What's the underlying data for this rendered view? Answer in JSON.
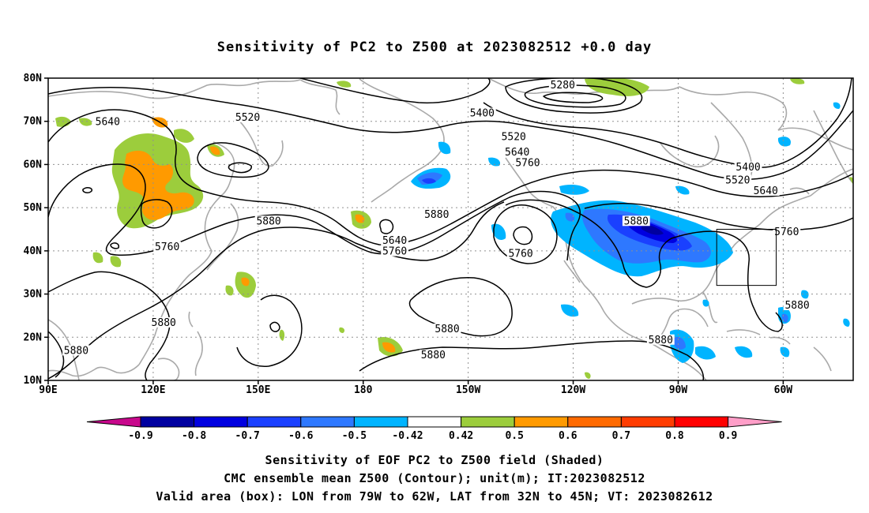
{
  "title": "Sensitivity of PC2 to Z500 at 2023082512 +0.0 day",
  "axes": {
    "lat_labels": [
      "80N",
      "70N",
      "60N",
      "50N",
      "40N",
      "30N",
      "20N",
      "10N"
    ],
    "lat_values": [
      80,
      70,
      60,
      50,
      40,
      30,
      20,
      10
    ],
    "lon_labels": [
      "90E",
      "120E",
      "150E",
      "180",
      "150W",
      "120W",
      "90W",
      "60W"
    ],
    "lon_values": [
      90,
      120,
      150,
      180,
      210,
      240,
      270,
      300
    ],
    "lon_range": [
      90,
      320
    ],
    "lat_range": [
      10,
      80
    ],
    "grid": "dotted"
  },
  "contour_labels": [
    {
      "text": "5280",
      "lon": 237,
      "lat": 78
    },
    {
      "text": "5400",
      "lon": 214,
      "lat": 71.5
    },
    {
      "text": "5400",
      "lon": 290,
      "lat": 59
    },
    {
      "text": "5520",
      "lon": 147,
      "lat": 70.5
    },
    {
      "text": "5520",
      "lon": 223,
      "lat": 66
    },
    {
      "text": "5520",
      "lon": 287,
      "lat": 56
    },
    {
      "text": "5640",
      "lon": 107,
      "lat": 69.5
    },
    {
      "text": "5640",
      "lon": 224,
      "lat": 62.5
    },
    {
      "text": "5640",
      "lon": 295,
      "lat": 53.5
    },
    {
      "text": "5640",
      "lon": 189,
      "lat": 42
    },
    {
      "text": "5760",
      "lon": 227,
      "lat": 60
    },
    {
      "text": "5760",
      "lon": 124,
      "lat": 40.5
    },
    {
      "text": "5760",
      "lon": 189,
      "lat": 39.5
    },
    {
      "text": "5760",
      "lon": 225,
      "lat": 39
    },
    {
      "text": "5760",
      "lon": 301,
      "lat": 44
    },
    {
      "text": "5880",
      "lon": 201,
      "lat": 48
    },
    {
      "text": "5880",
      "lon": 153,
      "lat": 46.5
    },
    {
      "text": "5880",
      "lon": 258,
      "lat": 46.5
    },
    {
      "text": "5880",
      "lon": 123,
      "lat": 23
    },
    {
      "text": "5880",
      "lon": 98,
      "lat": 16.5
    },
    {
      "text": "5880",
      "lon": 204,
      "lat": 21.5
    },
    {
      "text": "5880",
      "lon": 200,
      "lat": 15.5
    },
    {
      "text": "5880",
      "lon": 265,
      "lat": 19
    },
    {
      "text": "5880",
      "lon": 304,
      "lat": 27
    }
  ],
  "valid_box": {
    "lon_min": 281,
    "lon_max": 298,
    "lat_min": 32,
    "lat_max": 45
  },
  "colorbar": {
    "labels": [
      "-0.9",
      "-0.8",
      "-0.7",
      "-0.6",
      "-0.5",
      "-0.42",
      "0.42",
      "0.5",
      "0.6",
      "0.7",
      "0.8",
      "0.9"
    ],
    "colors": [
      "#0000a0",
      "#0000e0",
      "#1a40ff",
      "#2e78ff",
      "#00b4ff",
      "#ffffff",
      "#9ccd3c",
      "#ff9a00",
      "#ff6a00",
      "#ff3c00",
      "#ff0000"
    ],
    "low_end_color": "#c8088c",
    "high_end_color": "#ff9ec8"
  },
  "captions": {
    "line1": "Sensitivity of EOF PC2 to Z500 field (Shaded)",
    "line2": "CMC ensemble mean Z500 (Contour); unit(m); IT:2023082512",
    "line3": "Valid area (box): LON from 79W to 62W, LAT from 32N to 45N; VT: 2023082612"
  }
}
